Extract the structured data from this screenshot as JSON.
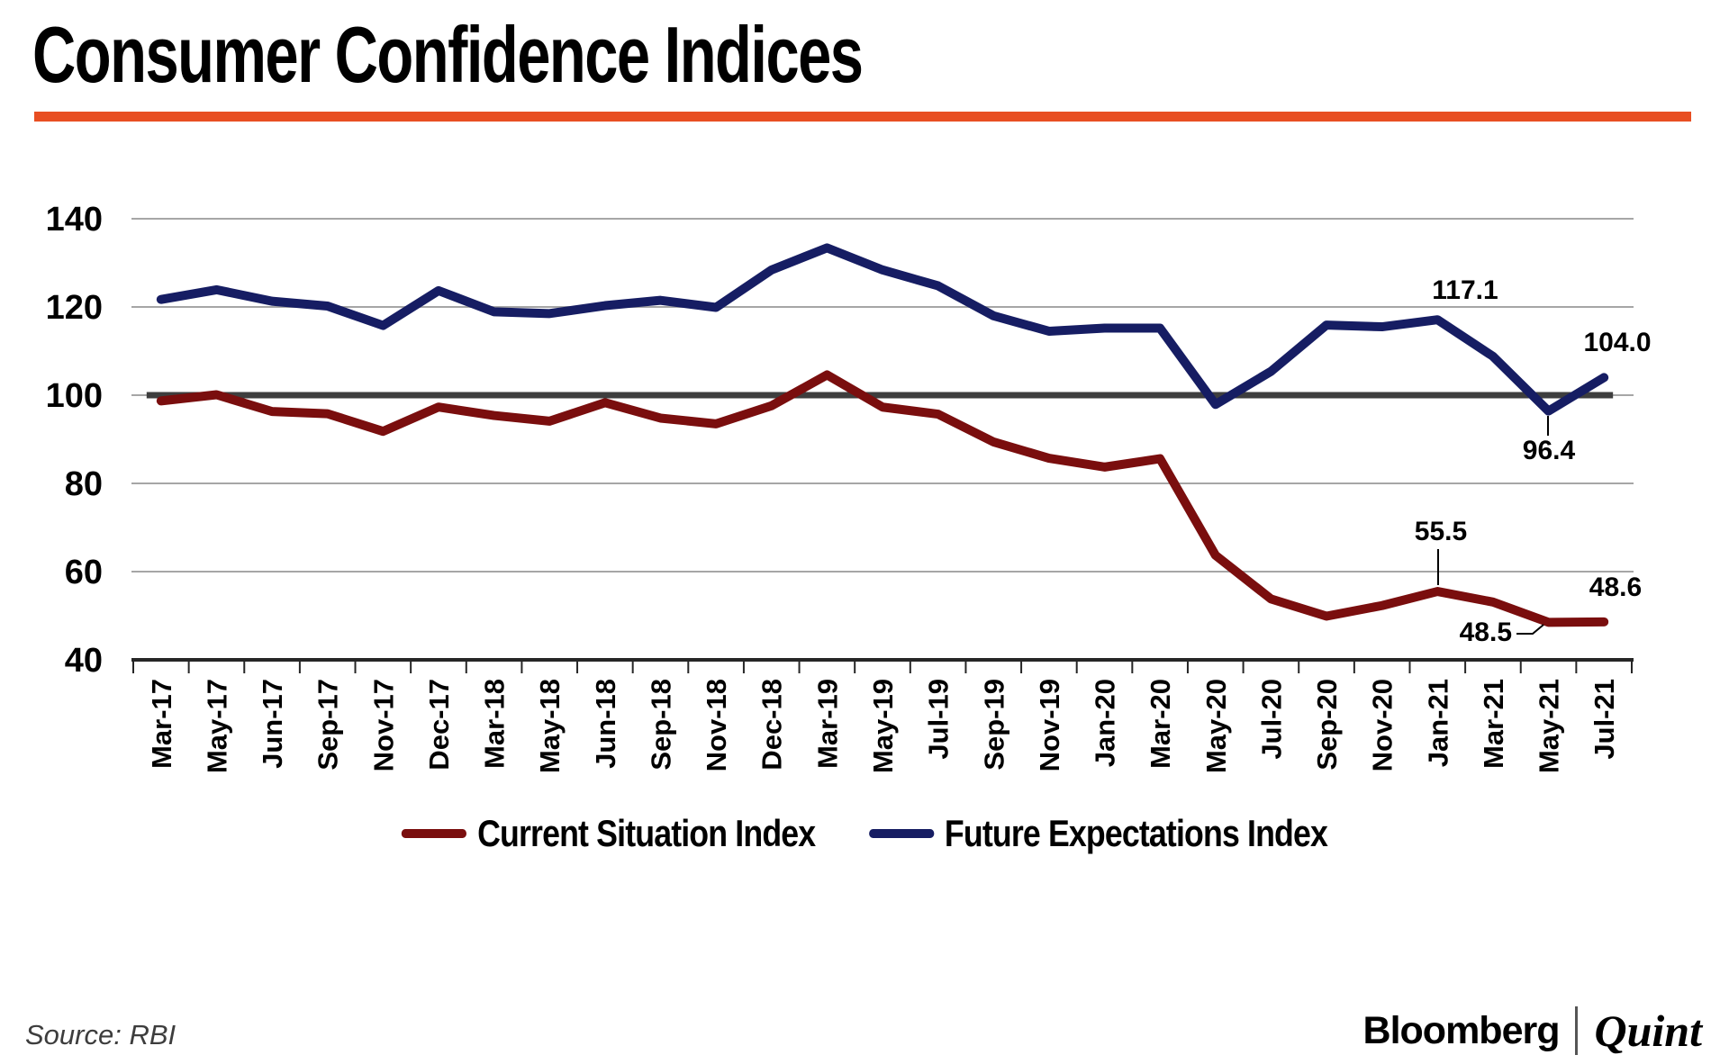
{
  "title": "Consumer Confidence Indices",
  "source": "Source: RBI",
  "branding": {
    "bloomberg": "Bloomberg",
    "quint": "Quint"
  },
  "colors": {
    "accent_orange": "#E84E22",
    "csi_red": "#7A0E0E",
    "fei_blue": "#161D63",
    "grid": "#A6A6A6",
    "reference_line": "#3E3E3E",
    "axis": "#262626"
  },
  "legend": [
    {
      "label": "Current Situation Index",
      "color": "#7A0E0E"
    },
    {
      "label": "Future Expectations Index",
      "color": "#161D63"
    }
  ],
  "chart_data": {
    "type": "line",
    "title": "Consumer Confidence Indices",
    "xlabel": "",
    "ylabel": "",
    "ylim": [
      40,
      140
    ],
    "yticks": [
      40,
      60,
      80,
      100,
      120,
      140
    ],
    "grid": true,
    "reference_line": 100,
    "legend_position": "bottom",
    "categories": [
      "Mar-17",
      "May-17",
      "Jun-17",
      "Sep-17",
      "Nov-17",
      "Dec-17",
      "Mar-18",
      "May-18",
      "Jun-18",
      "Sep-18",
      "Nov-18",
      "Dec-18",
      "Mar-19",
      "May-19",
      "Jul-19",
      "Sep-19",
      "Nov-19",
      "Jan-20",
      "Mar-20",
      "May-20",
      "Jul-20",
      "Sep-20",
      "Nov-20",
      "Jan-21",
      "Mar-21",
      "May-21",
      "Jul-21"
    ],
    "series": [
      {
        "name": "Current Situation Index",
        "color": "#7A0E0E",
        "values": [
          98.7,
          100.1,
          96.3,
          95.8,
          91.8,
          97.3,
          95.4,
          94.1,
          98.3,
          94.8,
          93.5,
          97.6,
          104.6,
          97.3,
          95.7,
          89.4,
          85.7,
          83.7,
          85.6,
          63.7,
          53.8,
          49.9,
          52.3,
          55.5,
          53.1,
          48.5,
          48.6
        ]
      },
      {
        "name": "Future Expectations Index",
        "color": "#161D63",
        "values": [
          121.7,
          123.9,
          121.3,
          120.2,
          115.8,
          123.7,
          118.9,
          118.5,
          120.3,
          121.5,
          119.9,
          128.4,
          133.4,
          128.4,
          124.8,
          118.0,
          114.5,
          115.2,
          115.2,
          97.9,
          105.4,
          115.9,
          115.5,
          117.1,
          108.8,
          96.4,
          104.0
        ]
      }
    ],
    "annotations": [
      {
        "series": "Future Expectations Index",
        "category": "Jan-21",
        "text": "117.1"
      },
      {
        "series": "Future Expectations Index",
        "category": "May-21",
        "text": "96.4"
      },
      {
        "series": "Future Expectations Index",
        "category": "Jul-21",
        "text": "104.0"
      },
      {
        "series": "Current Situation Index",
        "category": "Jan-21",
        "text": "55.5"
      },
      {
        "series": "Current Situation Index",
        "category": "May-21",
        "text": "48.5"
      },
      {
        "series": "Current Situation Index",
        "category": "Jul-21",
        "text": "48.6"
      }
    ]
  }
}
